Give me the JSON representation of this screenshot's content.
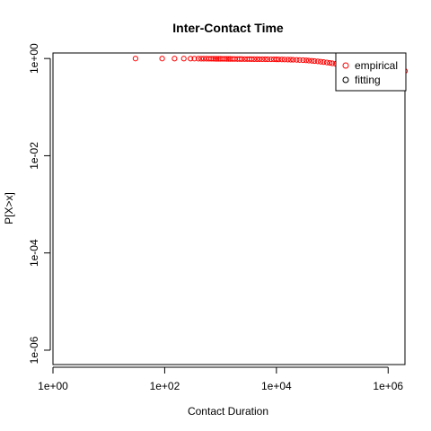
{
  "chart_data": {
    "type": "scatter",
    "title": "Inter-Contact Time",
    "xlabel": "Contact Duration",
    "ylabel": "P[X>x]",
    "x_scale": "log",
    "y_scale": "log",
    "xlim": [
      1,
      2000000
    ],
    "ylim": [
      5.06e-07,
      1.3
    ],
    "x_ticks": [
      1,
      100,
      10000,
      1000000
    ],
    "x_tick_labels": [
      "1e+00",
      "1e+02",
      "1e+04",
      "1e+06"
    ],
    "y_ticks": [
      1e-06,
      0.0001,
      0.01,
      1
    ],
    "y_tick_labels": [
      "1e-06",
      "1e-04",
      "1e-02",
      "1e+00"
    ],
    "legend": {
      "position": "top-right",
      "entries": [
        {
          "label": "empirical",
          "color": "#ff0000"
        },
        {
          "label": "fitting",
          "color": "#000000"
        }
      ]
    },
    "series": [
      {
        "name": "empirical",
        "color": "#ff0000",
        "marker": "open-circle",
        "x": [
          30,
          90,
          150,
          220,
          290,
          340,
          400,
          450,
          500,
          560,
          620,
          680,
          740,
          800,
          860,
          930,
          1000,
          1100,
          1200,
          1300,
          1400,
          1500,
          1650,
          1800,
          2000,
          2200,
          2400,
          2700,
          3000,
          3300,
          3600,
          4000,
          4500,
          5000,
          5600,
          6300,
          7000,
          8000,
          9000,
          10000,
          11000,
          12500,
          14000,
          16000,
          18000,
          20000,
          23000,
          26000,
          30000,
          34000,
          38000,
          43000,
          48000,
          55000,
          62000,
          70000,
          80000,
          90000,
          100000,
          115000,
          130000,
          150000,
          170000,
          195000,
          220000,
          250000,
          285000,
          320000,
          360000,
          410000,
          470000,
          530000,
          600000,
          680000,
          770000,
          870000,
          980000,
          1100000,
          1250000,
          1400000,
          1580000,
          1780000,
          2000000
        ],
        "y": [
          0.998,
          0.997,
          0.996,
          0.995,
          0.994,
          0.993,
          0.992,
          0.991,
          0.99,
          0.99,
          0.989,
          0.988,
          0.988,
          0.987,
          0.986,
          0.985,
          0.985,
          0.984,
          0.983,
          0.982,
          0.981,
          0.98,
          0.979,
          0.978,
          0.977,
          0.976,
          0.975,
          0.974,
          0.973,
          0.972,
          0.971,
          0.97,
          0.969,
          0.968,
          0.967,
          0.966,
          0.965,
          0.963,
          0.962,
          0.96,
          0.958,
          0.956,
          0.953,
          0.95,
          0.946,
          0.942,
          0.937,
          0.931,
          0.924,
          0.916,
          0.907,
          0.897,
          0.886,
          0.873,
          0.859,
          0.844,
          0.828,
          0.812,
          0.796,
          0.78,
          0.765,
          0.75,
          0.737,
          0.724,
          0.712,
          0.7,
          0.688,
          0.677,
          0.666,
          0.655,
          0.645,
          0.635,
          0.626,
          0.617,
          0.608,
          0.6,
          0.592,
          0.585,
          0.578,
          0.571,
          0.565,
          0.559,
          0.553
        ]
      },
      {
        "name": "fitting",
        "color": "#000000",
        "marker": "open-circle",
        "x": [],
        "y": []
      }
    ]
  }
}
